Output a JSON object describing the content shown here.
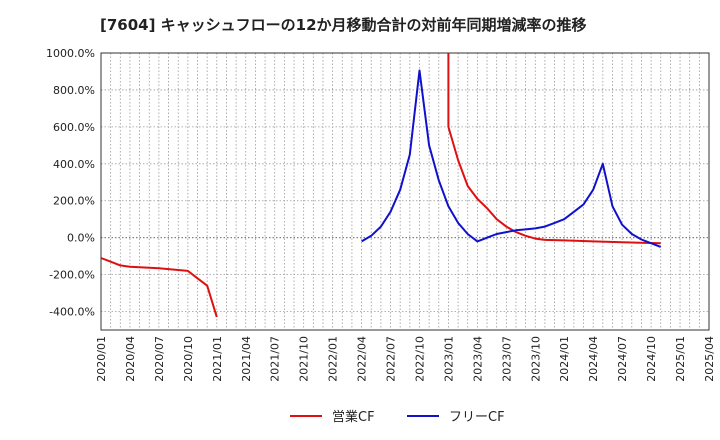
{
  "chart_data": {
    "type": "line",
    "title": "[7604]  キャッシュフローの12か月移動合計の対前年同期増減率の推移",
    "xlabel": "",
    "ylabel": "",
    "ylim": [
      -500,
      1000
    ],
    "yticks": [
      -400,
      -200,
      0,
      200,
      400,
      600,
      800,
      1000
    ],
    "ytick_labels": [
      "-400.0%",
      "-200.0%",
      "0.0%",
      "200.0%",
      "400.0%",
      "600.0%",
      "800.0%",
      "1000.0%"
    ],
    "xlim": [
      "2020/01",
      "2025/04"
    ],
    "xtick_labels": [
      "2020/01",
      "2020/04",
      "2020/07",
      "2020/10",
      "2021/01",
      "2021/04",
      "2021/07",
      "2021/10",
      "2022/01",
      "2022/04",
      "2022/07",
      "2022/10",
      "2023/01",
      "2023/04",
      "2023/07",
      "2023/10",
      "2024/01",
      "2024/04",
      "2024/07",
      "2024/10",
      "2025/01",
      "2025/04"
    ],
    "grid": true,
    "legend_position": "bottom-center",
    "series": [
      {
        "name": "営業CF",
        "color": "#dd1111",
        "segments": [
          [
            [
              "2020/01",
              -110
            ],
            [
              "2020/02",
              -130
            ],
            [
              "2020/03",
              -150
            ],
            [
              "2020/04",
              -158
            ],
            [
              "2020/05",
              -160
            ],
            [
              "2020/06",
              -163
            ],
            [
              "2020/07",
              -166
            ],
            [
              "2020/08",
              -170
            ],
            [
              "2020/09",
              -175
            ],
            [
              "2020/10",
              -180
            ],
            [
              "2020/11",
              -220
            ],
            [
              "2020/12",
              -260
            ],
            [
              "2021/01",
              -430
            ]
          ],
          [
            [
              "2023/01",
              1000
            ],
            [
              "2023/01",
              600
            ],
            [
              "2023/02",
              420
            ],
            [
              "2023/03",
              280
            ],
            [
              "2023/04",
              210
            ],
            [
              "2023/05",
              160
            ],
            [
              "2023/06",
              100
            ],
            [
              "2023/07",
              60
            ],
            [
              "2023/08",
              30
            ],
            [
              "2023/09",
              10
            ],
            [
              "2023/10",
              -5
            ],
            [
              "2023/11",
              -12
            ],
            [
              "2024/01",
              -15
            ],
            [
              "2024/04",
              -20
            ],
            [
              "2024/07",
              -25
            ],
            [
              "2024/11",
              -30
            ]
          ]
        ]
      },
      {
        "name": "フリーCF",
        "color": "#1111cc",
        "segments": [
          [
            [
              "2022/04",
              -20
            ],
            [
              "2022/05",
              10
            ],
            [
              "2022/06",
              60
            ],
            [
              "2022/07",
              140
            ],
            [
              "2022/08",
              260
            ],
            [
              "2022/09",
              450
            ],
            [
              "2022/10",
              905
            ],
            [
              "2022/11",
              500
            ],
            [
              "2022/12",
              310
            ],
            [
              "2023/01",
              170
            ],
            [
              "2023/02",
              80
            ],
            [
              "2023/03",
              20
            ],
            [
              "2023/04",
              -20
            ],
            [
              "2023/05",
              0
            ],
            [
              "2023/06",
              20
            ],
            [
              "2023/07",
              30
            ],
            [
              "2023/08",
              40
            ],
            [
              "2023/09",
              45
            ],
            [
              "2023/10",
              50
            ],
            [
              "2023/11",
              60
            ],
            [
              "2023/12",
              80
            ],
            [
              "2024/01",
              100
            ],
            [
              "2024/02",
              140
            ],
            [
              "2024/03",
              180
            ],
            [
              "2024/04",
              260
            ],
            [
              "2024/05",
              400
            ],
            [
              "2024/06",
              170
            ],
            [
              "2024/07",
              70
            ],
            [
              "2024/08",
              20
            ],
            [
              "2024/09",
              -10
            ],
            [
              "2024/10",
              -30
            ],
            [
              "2024/11",
              -50
            ]
          ]
        ]
      }
    ]
  }
}
